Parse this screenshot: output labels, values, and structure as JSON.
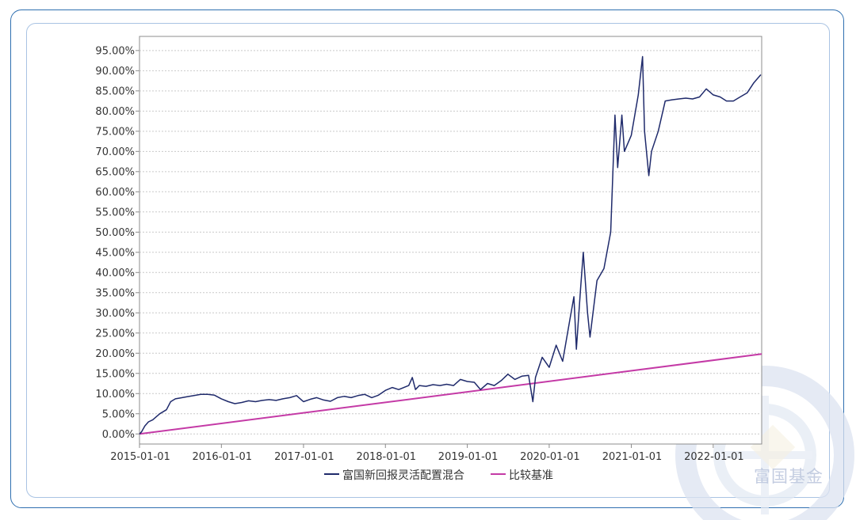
{
  "watermark": "富国基金",
  "chart_data": {
    "type": "line",
    "title": "",
    "xlabel": "",
    "ylabel": "",
    "x_ticks": [
      "2015-01-01",
      "2016-01-01",
      "2017-01-01",
      "2018-01-01",
      "2019-01-01",
      "2020-01-01",
      "2021-01-01",
      "2022-01-01"
    ],
    "y_ticks": [
      "0.00%",
      "5.00%",
      "10.00%",
      "15.00%",
      "20.00%",
      "25.00%",
      "30.00%",
      "35.00%",
      "40.00%",
      "45.00%",
      "50.00%",
      "55.00%",
      "60.00%",
      "65.00%",
      "70.00%",
      "75.00%",
      "80.00%",
      "85.00%",
      "90.00%",
      "95.00%"
    ],
    "ylim": [
      -2.5,
      98.5
    ],
    "xlim": [
      "2015-01-01",
      "2022-08-05"
    ],
    "grid": true,
    "legend_position": "bottom",
    "colors": {
      "fund": "#1f2a6b",
      "benchmark": "#c43aa6"
    },
    "series": [
      {
        "name": "富国新回报灵活配置混合",
        "color": "#1f2a6b",
        "points": [
          [
            "2015-01-01",
            0.0
          ],
          [
            "2015-01-10",
            0.5
          ],
          [
            "2015-01-25",
            2.0
          ],
          [
            "2015-02-10",
            3.0
          ],
          [
            "2015-03-01",
            3.5
          ],
          [
            "2015-04-01",
            5.0
          ],
          [
            "2015-05-01",
            6.0
          ],
          [
            "2015-05-20",
            8.0
          ],
          [
            "2015-06-10",
            8.7
          ],
          [
            "2015-07-01",
            8.9
          ],
          [
            "2015-08-01",
            9.2
          ],
          [
            "2015-09-01",
            9.5
          ],
          [
            "2015-10-01",
            9.8
          ],
          [
            "2015-11-01",
            9.8
          ],
          [
            "2015-12-01",
            9.6
          ],
          [
            "2016-01-01",
            8.7
          ],
          [
            "2016-02-01",
            8.0
          ],
          [
            "2016-03-01",
            7.5
          ],
          [
            "2016-04-01",
            7.8
          ],
          [
            "2016-05-01",
            8.2
          ],
          [
            "2016-06-01",
            8.0
          ],
          [
            "2016-07-01",
            8.3
          ],
          [
            "2016-08-01",
            8.5
          ],
          [
            "2016-09-01",
            8.3
          ],
          [
            "2016-10-01",
            8.7
          ],
          [
            "2016-11-01",
            9.0
          ],
          [
            "2016-12-01",
            9.5
          ],
          [
            "2017-01-01",
            8.0
          ],
          [
            "2017-02-01",
            8.6
          ],
          [
            "2017-03-01",
            9.0
          ],
          [
            "2017-04-01",
            8.4
          ],
          [
            "2017-05-01",
            8.1
          ],
          [
            "2017-06-01",
            9.0
          ],
          [
            "2017-07-01",
            9.3
          ],
          [
            "2017-08-01",
            9.0
          ],
          [
            "2017-09-01",
            9.5
          ],
          [
            "2017-10-01",
            9.8
          ],
          [
            "2017-11-01",
            9.0
          ],
          [
            "2017-12-01",
            9.6
          ],
          [
            "2018-01-01",
            10.8
          ],
          [
            "2018-02-01",
            11.5
          ],
          [
            "2018-03-01",
            11.0
          ],
          [
            "2018-04-15",
            12.0
          ],
          [
            "2018-05-01",
            14.0
          ],
          [
            "2018-05-15",
            11.0
          ],
          [
            "2018-06-01",
            12.0
          ],
          [
            "2018-07-01",
            11.8
          ],
          [
            "2018-08-01",
            12.2
          ],
          [
            "2018-09-01",
            12.0
          ],
          [
            "2018-10-01",
            12.3
          ],
          [
            "2018-11-01",
            12.0
          ],
          [
            "2018-12-01",
            13.5
          ],
          [
            "2019-01-01",
            13.0
          ],
          [
            "2019-02-01",
            12.8
          ],
          [
            "2019-03-01",
            11.0
          ],
          [
            "2019-04-01",
            12.5
          ],
          [
            "2019-05-01",
            12.0
          ],
          [
            "2019-06-01",
            13.2
          ],
          [
            "2019-07-01",
            14.8
          ],
          [
            "2019-08-01",
            13.5
          ],
          [
            "2019-09-01",
            14.3
          ],
          [
            "2019-10-01",
            14.5
          ],
          [
            "2019-10-20",
            8.0
          ],
          [
            "2019-11-01",
            14.0
          ],
          [
            "2019-12-01",
            19.0
          ],
          [
            "2020-01-01",
            16.5
          ],
          [
            "2020-02-01",
            22.0
          ],
          [
            "2020-03-01",
            18.0
          ],
          [
            "2020-04-01",
            28.0
          ],
          [
            "2020-04-20",
            34.0
          ],
          [
            "2020-05-01",
            21.0
          ],
          [
            "2020-05-20",
            36.0
          ],
          [
            "2020-06-01",
            45.0
          ],
          [
            "2020-06-20",
            30.0
          ],
          [
            "2020-07-01",
            24.0
          ],
          [
            "2020-08-01",
            38.0
          ],
          [
            "2020-09-01",
            41.0
          ],
          [
            "2020-10-01",
            50.0
          ],
          [
            "2020-10-20",
            79.0
          ],
          [
            "2020-11-01",
            66.0
          ],
          [
            "2020-11-20",
            79.0
          ],
          [
            "2020-12-01",
            70.0
          ],
          [
            "2021-01-01",
            74.0
          ],
          [
            "2021-02-01",
            84.0
          ],
          [
            "2021-02-20",
            93.5
          ],
          [
            "2021-03-01",
            75.0
          ],
          [
            "2021-03-20",
            64.0
          ],
          [
            "2021-04-01",
            70.0
          ],
          [
            "2021-05-01",
            75.0
          ],
          [
            "2021-06-01",
            82.5
          ],
          [
            "2021-07-01",
            82.8
          ],
          [
            "2021-08-01",
            83.0
          ],
          [
            "2021-09-01",
            83.2
          ],
          [
            "2021-10-01",
            83.0
          ],
          [
            "2021-11-01",
            83.5
          ],
          [
            "2021-12-01",
            85.5
          ],
          [
            "2022-01-01",
            84.0
          ],
          [
            "2022-02-01",
            83.5
          ],
          [
            "2022-03-01",
            82.5
          ],
          [
            "2022-04-01",
            82.5
          ],
          [
            "2022-05-01",
            83.5
          ],
          [
            "2022-06-01",
            84.5
          ],
          [
            "2022-07-01",
            87.0
          ],
          [
            "2022-08-01",
            89.0
          ]
        ]
      },
      {
        "name": "比较基准",
        "color": "#c43aa6",
        "points": [
          [
            "2015-01-01",
            0.0
          ],
          [
            "2022-08-05",
            19.8
          ]
        ]
      }
    ]
  }
}
